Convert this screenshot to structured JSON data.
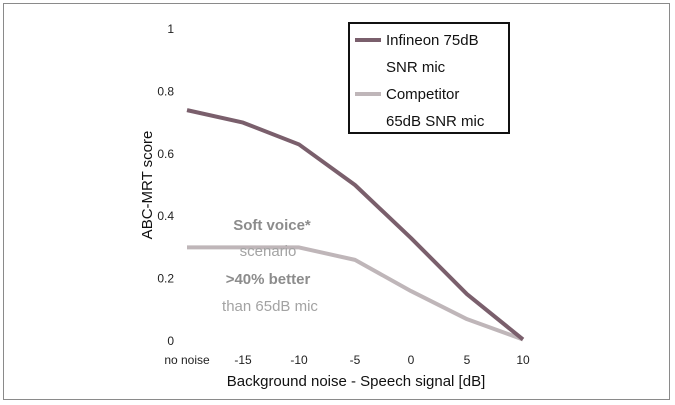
{
  "chart_data": {
    "type": "line",
    "title": "",
    "xlabel": "Background noise - Speech signal [dB]",
    "ylabel": "ABC-MRT score",
    "categories": [
      "no noise",
      "-15",
      "-10",
      "-5",
      "0",
      "5",
      "10"
    ],
    "yticks": [
      "0",
      "0.2",
      "0.4",
      "0.6",
      "0.8",
      "1"
    ],
    "ylim": [
      0,
      1
    ],
    "grid": false,
    "legend_position": "top-right",
    "series": [
      {
        "name": "Infineon 75dB SNR mic",
        "legend_lines": [
          "Infineon 75dB",
          "SNR mic"
        ],
        "color": "#7a5f6c",
        "values": [
          0.74,
          0.7,
          0.63,
          0.5,
          0.33,
          0.15,
          0.005
        ]
      },
      {
        "name": "Competitor 65dB SNR mic",
        "legend_lines": [
          "Competitor",
          "65dB  SNR mic"
        ],
        "color": "#bfb6b9",
        "values": [
          0.3,
          0.3,
          0.3,
          0.26,
          0.16,
          0.07,
          0.005
        ]
      }
    ],
    "annotations": [
      "Soft voice*",
      "scenario",
      ">40% better",
      "than 65dB mic"
    ]
  },
  "colors": {
    "annotation_bold": "#8c8c8c",
    "annotation_light": "#a3a3a3"
  }
}
